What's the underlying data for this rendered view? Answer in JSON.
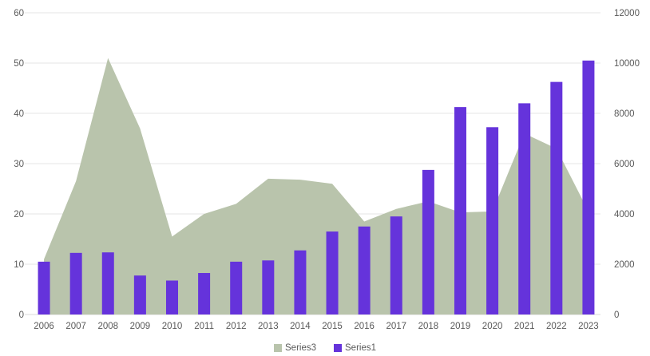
{
  "chart_data": {
    "type": "combo",
    "title": "",
    "categories": [
      "2006",
      "2007",
      "2008",
      "2009",
      "2010",
      "2011",
      "2012",
      "2013",
      "2014",
      "2015",
      "2016",
      "2017",
      "2018",
      "2019",
      "2020",
      "2021",
      "2022",
      "2023"
    ],
    "series": [
      {
        "name": "Series3",
        "type": "area",
        "axis": "left",
        "color": "#b9c4ac",
        "values": [
          11,
          26.5,
          51,
          37,
          15.5,
          20,
          22,
          27,
          26.8,
          26,
          18.5,
          21,
          22.5,
          20.3,
          20.5,
          36,
          33,
          20.5
        ]
      },
      {
        "name": "Series1",
        "type": "bar",
        "axis": "right",
        "color": "#6533db",
        "values": [
          2100,
          2450,
          2470,
          1550,
          1350,
          1650,
          2100,
          2150,
          2550,
          3300,
          3500,
          3900,
          5750,
          8250,
          7450,
          8400,
          9250,
          10100
        ]
      }
    ],
    "left_axis": {
      "min": 0,
      "max": 60,
      "step": 10,
      "ticks": [
        "0",
        "10",
        "20",
        "30",
        "40",
        "50",
        "60"
      ]
    },
    "right_axis": {
      "min": 0,
      "max": 12000,
      "step": 2000,
      "ticks": [
        "0",
        "2000",
        "4000",
        "6000",
        "8000",
        "10000",
        "12000"
      ]
    },
    "grid": true,
    "legend_position": "bottom-center"
  },
  "style": {
    "text_color": "#595959",
    "gridline_color": "#e6e6e6",
    "baseline_color": "#d9d9d9",
    "background": "#ffffff"
  }
}
